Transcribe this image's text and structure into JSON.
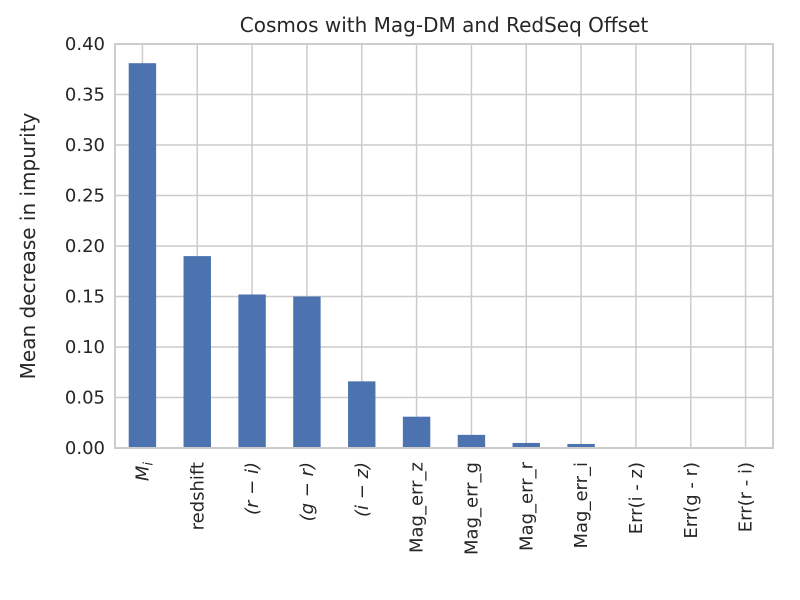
{
  "chart_data": {
    "type": "bar",
    "title": "Cosmos with Mag-DM and RedSeq Offset",
    "xlabel": "",
    "ylabel": "Mean decrease in impurity",
    "categories": [
      "M_i",
      "redshift",
      "(r − i)",
      "(g − r)",
      "(i − z)",
      "Mag_err_z",
      "Mag_err_g",
      "Mag_err_r",
      "Mag_err_i",
      "Err(i - z)",
      "Err(g - r)",
      "Err(r - i)"
    ],
    "values": [
      0.381,
      0.19,
      0.152,
      0.15,
      0.066,
      0.031,
      0.013,
      0.005,
      0.004,
      0.001,
      0.001,
      0.0005
    ],
    "ylim": [
      0,
      0.4
    ],
    "yticks": [
      "0.00",
      "0.05",
      "0.10",
      "0.15",
      "0.20",
      "0.25",
      "0.30",
      "0.35",
      "0.40"
    ],
    "grid": true,
    "color": "#4c72b0"
  }
}
